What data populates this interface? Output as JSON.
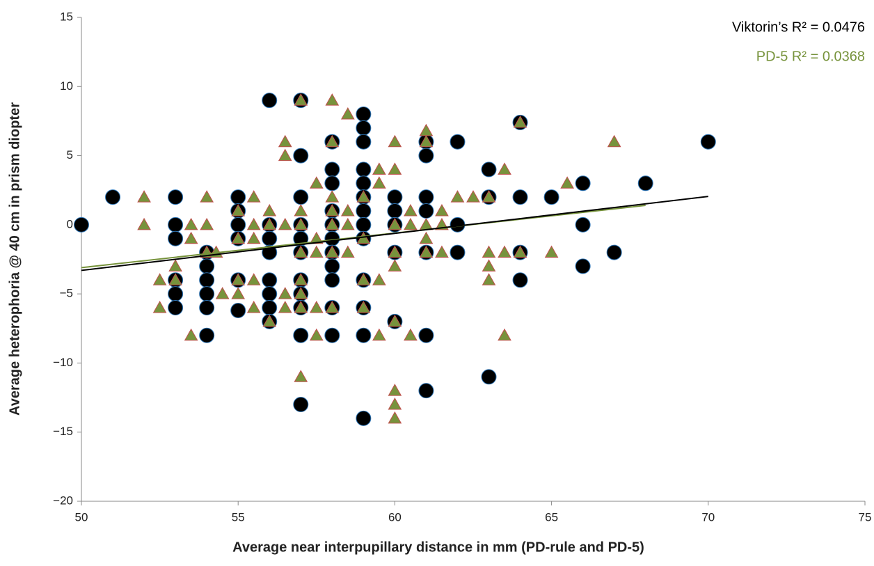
{
  "chart_data": {
    "type": "scatter",
    "xlabel": "Average near interpupillary distance in mm (PD-rule and PD-5)",
    "ylabel": "Average heterophoria @ 40 cm in prism diopter",
    "xlim": [
      50,
      75
    ],
    "xticks": [
      50,
      55,
      60,
      65,
      70,
      75
    ],
    "ylim": [
      -20,
      15
    ],
    "yticks": [
      {
        "value": -20,
        "label": "−20"
      },
      {
        "value": -15,
        "label": "−15"
      },
      {
        "value": -10,
        "label": "−10"
      },
      {
        "value": -5,
        "label": "−5"
      },
      0,
      5,
      10,
      15
    ],
    "annotations": [
      {
        "text": "Viktorin’s R² = 0.0476",
        "color": "#000000"
      },
      {
        "text": "PD-5 R² = 0.0368",
        "color": "#77933c"
      }
    ],
    "series": [
      {
        "marker": "circle",
        "color": "#000000",
        "edgecolor": "#2e75b6",
        "x": [
          50,
          51,
          53,
          53,
          53,
          53,
          53,
          53,
          54,
          54,
          54,
          54,
          54,
          54,
          55,
          55,
          55,
          55,
          55,
          55,
          56,
          56,
          56,
          56,
          56,
          56,
          56,
          56,
          57,
          57,
          57,
          57,
          57,
          57,
          57,
          57,
          57,
          57,
          57,
          58,
          58,
          58,
          58,
          58,
          58,
          58,
          58,
          58,
          58,
          58,
          59,
          59,
          59,
          59,
          59,
          59,
          59,
          59,
          59,
          59,
          59,
          59,
          59,
          60,
          60,
          60,
          60,
          60,
          61,
          61,
          61,
          61,
          61,
          61,
          61,
          62,
          62,
          62,
          63,
          63,
          63,
          64,
          64,
          64,
          64,
          65,
          66,
          66,
          66,
          67,
          68,
          70
        ],
        "values": [
          0,
          2,
          2,
          0,
          -1,
          -4,
          -5,
          -6,
          -2,
          -3,
          -4,
          -5,
          -6,
          -8,
          2,
          1,
          0,
          -1,
          -4,
          -6.2,
          9,
          0,
          -1,
          -2,
          -4,
          -5,
          -6,
          -7,
          9,
          5,
          2,
          0,
          -1,
          -2,
          -4,
          -5,
          -6,
          -8,
          -13,
          6,
          4,
          3,
          1,
          0,
          -1,
          -2,
          -3,
          -4,
          -6,
          -8,
          8,
          7,
          6,
          4,
          3,
          2,
          1,
          0,
          -1,
          -4,
          -6,
          -8,
          -14,
          2,
          1,
          0,
          -2,
          -7,
          6,
          5,
          2,
          1,
          -2,
          -8,
          -12,
          6,
          0,
          -2,
          4,
          2,
          -11,
          7.4,
          2,
          -2,
          -4,
          2,
          3,
          0,
          -3,
          -2,
          3,
          6
        ]
      },
      {
        "marker": "triangle",
        "color": "#77933c",
        "edgecolor": "#c0504d",
        "x": [
          52,
          52,
          52.5,
          52.5,
          53,
          53,
          53.5,
          53.5,
          53.5,
          54,
          54,
          54,
          54.3,
          54.5,
          55,
          55,
          55,
          55,
          55.5,
          55.5,
          55.5,
          55.5,
          55.5,
          56,
          56,
          56,
          56.5,
          56.5,
          56.5,
          56.5,
          56.5,
          57,
          57,
          57,
          57,
          57,
          57,
          57,
          57,
          57.5,
          57.5,
          57.5,
          57.5,
          57.5,
          58,
          58,
          58,
          58,
          58,
          58,
          58,
          58.5,
          58.5,
          58.5,
          58.5,
          59,
          59,
          59,
          59,
          59.5,
          59.5,
          59.5,
          59.5,
          60,
          60,
          60,
          60,
          60,
          60,
          60,
          60,
          60,
          60.5,
          60.5,
          60.5,
          61,
          61,
          61,
          61,
          61,
          61.5,
          61.5,
          61.5,
          62,
          62.5,
          63,
          63,
          63,
          63,
          63.5,
          63.5,
          63.5,
          64,
          64,
          65,
          65.5,
          67
        ],
        "values": [
          2,
          0,
          -4,
          -6,
          -3,
          -4,
          0,
          -1,
          -8,
          2,
          0,
          -2,
          -2,
          -5,
          1,
          -1,
          -4,
          -5,
          2,
          0,
          -1,
          -4,
          -6,
          1,
          0,
          -7,
          6,
          5,
          0,
          -5,
          -6,
          9,
          1,
          0,
          -2,
          -4,
          -5,
          -6,
          -11,
          3,
          -1,
          -2,
          -6,
          -8,
          9,
          6,
          2,
          1,
          0,
          -2,
          -6,
          8,
          1,
          0,
          -2,
          2,
          -1,
          -4,
          -6,
          4,
          3,
          -4,
          -8,
          6,
          4,
          0,
          -2,
          -3,
          -7,
          -12,
          -13,
          -14,
          1,
          0,
          -8,
          6.8,
          6,
          0,
          -1,
          -2,
          1,
          0,
          -2,
          2,
          2,
          2,
          -2,
          -3,
          -4,
          4,
          -2,
          -8,
          7.4,
          -2,
          -2,
          3,
          6
        ]
      }
    ],
    "trendlines": [
      {
        "color": "#77933c",
        "x": [
          50,
          68
        ],
        "values": [
          -3.1,
          1.4
        ]
      },
      {
        "color": "#000000",
        "x": [
          50,
          70
        ],
        "values": [
          -3.3,
          2.05
        ]
      }
    ]
  }
}
